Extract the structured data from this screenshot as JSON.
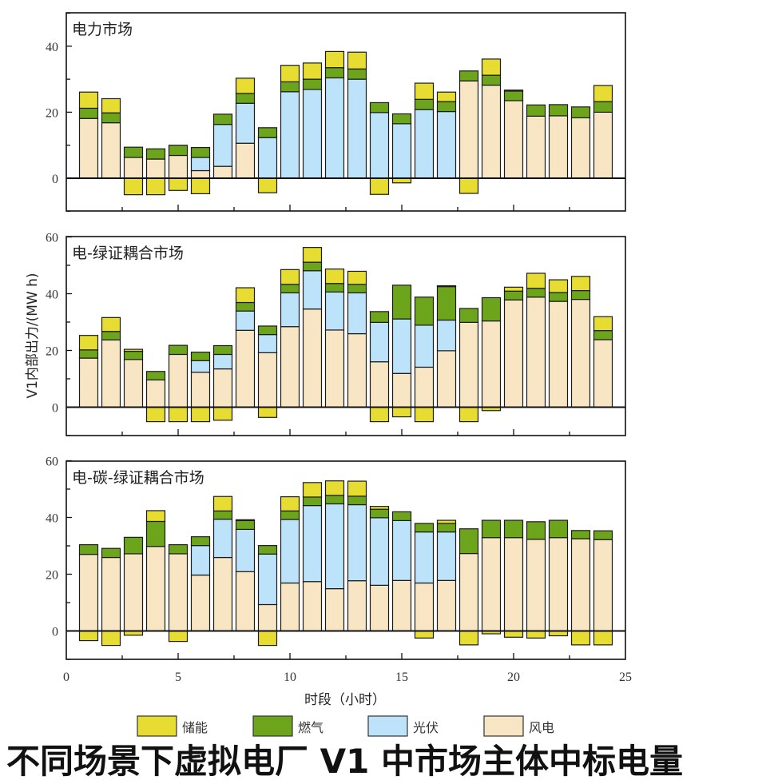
{
  "caption": "不同场景下虚拟电厂 V1 中市场主体中标电量",
  "chart_data": [
    {
      "type": "bar",
      "stacked": true,
      "title": "电力市场",
      "xlabel": "时段（小时）",
      "ylabel": "V1内部出力/(MW h)",
      "xlim": [
        0,
        25
      ],
      "ylim": [
        -10,
        50
      ],
      "yticks": [
        0,
        20,
        40
      ],
      "xticks": [
        0,
        5,
        10,
        15,
        20,
        25
      ],
      "x": [
        1,
        2,
        3,
        4,
        5,
        6,
        7,
        8,
        9,
        10,
        11,
        12,
        13,
        14,
        15,
        16,
        17,
        18,
        19,
        20,
        21,
        22,
        23,
        24
      ],
      "series": [
        {
          "name": "风电",
          "values": [
            18.1,
            16.8,
            6.3,
            5.8,
            6.9,
            2.3,
            3.6,
            10.6,
            0,
            0,
            0,
            0,
            0,
            0,
            0,
            0,
            0,
            29.5,
            28.2,
            23.5,
            18.8,
            18.9,
            18.3,
            20.0
          ]
        },
        {
          "name": "光伏",
          "values": [
            0,
            0,
            0,
            0,
            0,
            4.0,
            12.7,
            12.1,
            12.3,
            26.2,
            26.9,
            30.4,
            30.0,
            19.9,
            16.5,
            20.8,
            20.2,
            0,
            0,
            0,
            0,
            0,
            0,
            0
          ]
        },
        {
          "name": "燃气",
          "values": [
            3.1,
            3.0,
            3.1,
            3.1,
            3.1,
            3.0,
            3.1,
            3.0,
            3.0,
            3.0,
            3.1,
            3.1,
            3.1,
            3.0,
            3.0,
            3.1,
            3.0,
            3.0,
            3.0,
            2.9,
            3.4,
            3.4,
            3.3,
            3.2
          ]
        },
        {
          "name": "储能",
          "values": [
            4.9,
            4.3,
            -5.0,
            -5.0,
            -3.7,
            -4.7,
            0,
            4.6,
            -4.4,
            5.0,
            4.9,
            4.9,
            5.1,
            -4.9,
            -1.4,
            4.9,
            2.9,
            -4.6,
            4.9,
            0.3,
            0,
            0,
            0,
            4.9
          ]
        }
      ]
    },
    {
      "type": "bar",
      "stacked": true,
      "title": "电-绿证耦合市场",
      "xlabel": "时段（小时）",
      "ylabel": "V1内部出力/(MW h)",
      "xlim": [
        0,
        25
      ],
      "ylim": [
        -10,
        60
      ],
      "yticks": [
        0,
        20,
        40,
        60
      ],
      "xticks": [
        0,
        5,
        10,
        15,
        20,
        25
      ],
      "x": [
        1,
        2,
        3,
        4,
        5,
        6,
        7,
        8,
        9,
        10,
        11,
        12,
        13,
        14,
        15,
        16,
        17,
        18,
        19,
        20,
        21,
        22,
        23,
        24
      ],
      "series": [
        {
          "name": "风电",
          "values": [
            17.3,
            23.7,
            16.8,
            9.6,
            18.6,
            12.3,
            13.5,
            27.1,
            19.2,
            28.4,
            34.6,
            27.2,
            25.9,
            16.0,
            11.9,
            14.1,
            19.9,
            29.9,
            30.4,
            37.8,
            38.8,
            37.3,
            38.0,
            23.8
          ]
        },
        {
          "name": "光伏",
          "values": [
            0,
            0,
            0,
            0,
            0,
            4.1,
            5.1,
            6.8,
            6.4,
            11.9,
            13.5,
            13.4,
            14.4,
            13.9,
            19.2,
            14.8,
            10.8,
            0,
            0,
            0,
            0,
            0,
            0,
            0
          ]
        },
        {
          "name": "燃气",
          "values": [
            2.9,
            3.0,
            2.9,
            3.0,
            3.2,
            3.0,
            3.1,
            3.0,
            3.0,
            3.0,
            3.0,
            3.0,
            3.0,
            3.8,
            11.9,
            9.9,
            11.8,
            4.9,
            8.2,
            3.1,
            3.1,
            3.1,
            3.1,
            3.2
          ]
        },
        {
          "name": "储能",
          "values": [
            5.1,
            4.9,
            0.7,
            -5.1,
            -5.1,
            -5.1,
            -4.6,
            5.2,
            -3.6,
            5.2,
            5.2,
            5.1,
            4.6,
            -5.1,
            -3.4,
            -5.1,
            0.3,
            -5.1,
            -1.2,
            1.4,
            5.3,
            4.5,
            5.0,
            4.9
          ]
        }
      ]
    },
    {
      "type": "bar",
      "stacked": true,
      "title": "电-碳-绿证耦合市场",
      "xlabel": "时段（小时）",
      "ylabel": "V1内部出力/(MW h)",
      "xlim": [
        0,
        25
      ],
      "ylim": [
        -10,
        60
      ],
      "yticks": [
        0,
        20,
        40,
        60
      ],
      "xticks": [
        0,
        5,
        10,
        15,
        20,
        25
      ],
      "x": [
        1,
        2,
        3,
        4,
        5,
        6,
        7,
        8,
        9,
        10,
        11,
        12,
        13,
        14,
        15,
        16,
        17,
        18,
        19,
        20,
        21,
        22,
        23,
        24
      ],
      "series": [
        {
          "name": "风电",
          "values": [
            27.0,
            25.9,
            27.2,
            29.8,
            27.2,
            19.7,
            25.9,
            20.9,
            9.3,
            16.9,
            17.4,
            14.9,
            17.7,
            16.1,
            17.8,
            16.9,
            17.8,
            27.3,
            32.9,
            32.9,
            32.3,
            32.9,
            32.5,
            32.2
          ]
        },
        {
          "name": "光伏",
          "values": [
            0,
            0,
            0,
            0,
            0,
            10.4,
            13.5,
            14.9,
            17.8,
            22.4,
            26.8,
            29.9,
            26.8,
            23.8,
            21.1,
            18.0,
            17.1,
            0,
            0,
            0,
            0,
            0,
            0,
            0
          ]
        },
        {
          "name": "燃气",
          "values": [
            3.4,
            3.2,
            5.8,
            8.8,
            3.2,
            3.1,
            2.9,
            3.1,
            3.0,
            3.0,
            3.0,
            3.0,
            3.0,
            3.0,
            3.1,
            3.0,
            3.0,
            8.7,
            6.1,
            6.1,
            6.2,
            6.1,
            2.9,
            3.1
          ]
        },
        {
          "name": "储能",
          "values": [
            -3.4,
            -5.1,
            -1.5,
            3.8,
            -3.7,
            0,
            5.1,
            0.3,
            -5.1,
            5.0,
            5.1,
            5.1,
            5.3,
            1.0,
            0,
            -2.5,
            1.1,
            -4.9,
            -1.0,
            -2.2,
            -2.5,
            -1.7,
            -4.9,
            -4.9
          ]
        }
      ]
    }
  ],
  "legend": [
    {
      "name": "储能",
      "color": "#e6dc32"
    },
    {
      "name": "燃气",
      "color": "#6ca51c"
    },
    {
      "name": "光伏",
      "color": "#bde3fa"
    },
    {
      "name": "风电",
      "color": "#f8e5c4"
    }
  ],
  "colors": {
    "风电": "#f8e5c4",
    "光伏": "#bde3fa",
    "燃气": "#6ca51c",
    "储能": "#e6dc32",
    "bar_stroke": "#1a1a1a",
    "axis": "#111111"
  }
}
